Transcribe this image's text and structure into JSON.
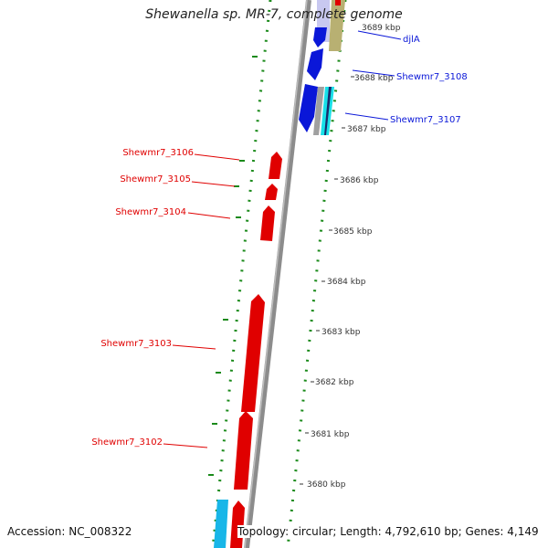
{
  "title": "Shewanella sp. MR-7, complete genome",
  "footer": {
    "accession": "Accession: NC_008322",
    "info": "Topology: circular; Length: 4,792,610 bp; Genes: 4,149"
  },
  "colors": {
    "reverse_gene": "#e00000",
    "forward_gene": "#0a17d8",
    "cyan_gene": "#18b6e8",
    "gc_dots": "#1a8a1a",
    "backbone": "#8c8c8c",
    "ruler_text": "#333333"
  },
  "ruler_labels": [
    "3689 kbp",
    "3688 kbp",
    "3687 kbp",
    "3686 kbp",
    "3685 kbp",
    "3684 kbp",
    "3683 kbp",
    "3682 kbp",
    "3681 kbp",
    "3680 kbp"
  ],
  "genes": {
    "reverse": [
      {
        "label": "Shewmr7_3106"
      },
      {
        "label": "Shewmr7_3105"
      },
      {
        "label": "Shewmr7_3104"
      },
      {
        "label": "Shewmr7_3103"
      },
      {
        "label": "Shewmr7_3102"
      }
    ],
    "forward": [
      {
        "label": "djlA"
      },
      {
        "label": "Shewmr7_3108"
      },
      {
        "label": "Shewmr7_3107"
      }
    ]
  }
}
